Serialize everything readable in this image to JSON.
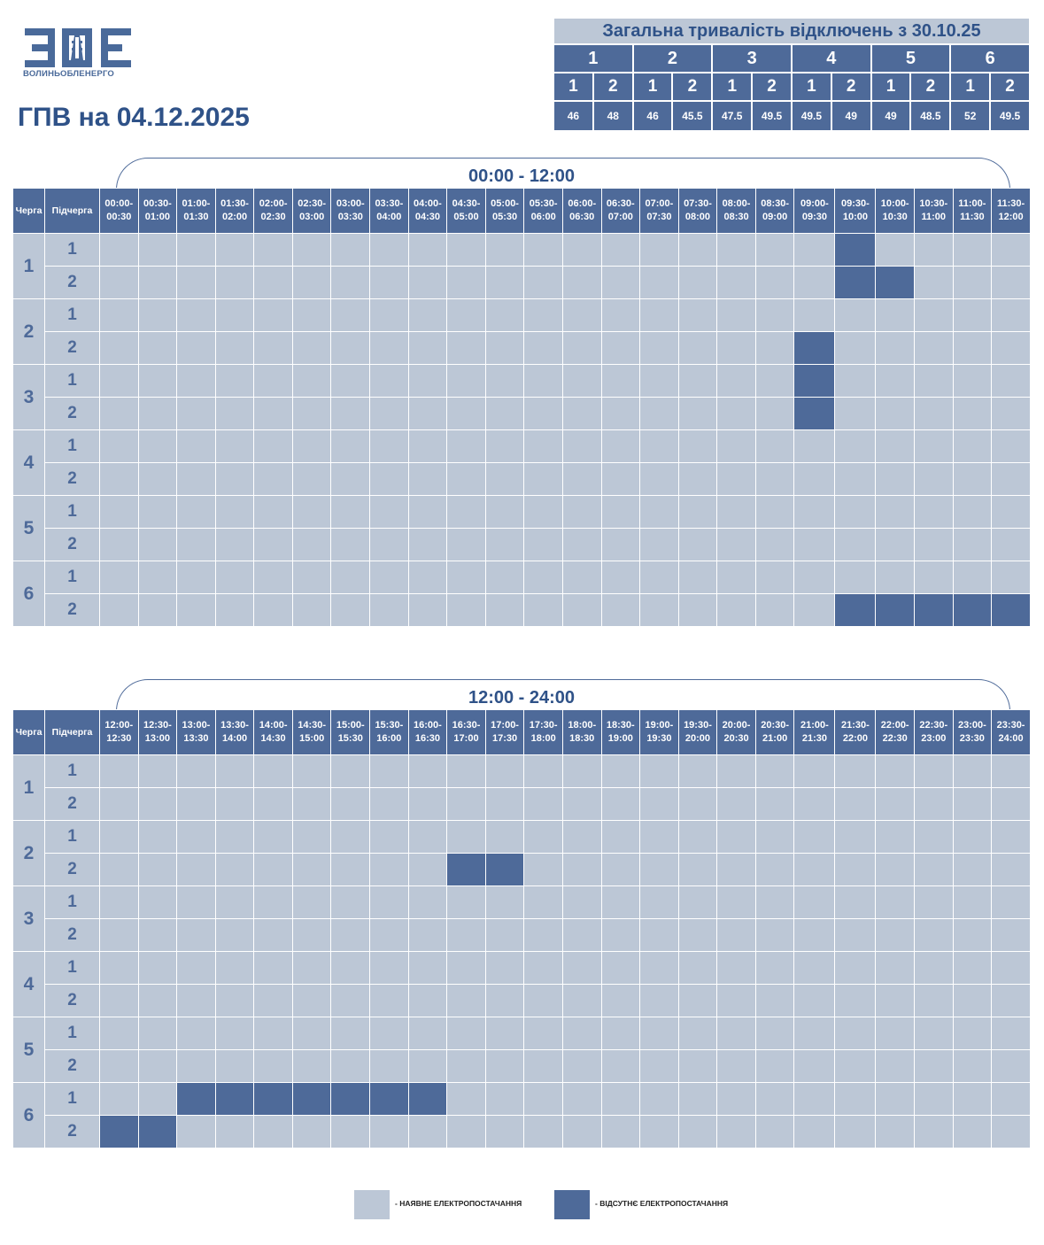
{
  "logo": {
    "text": "ВОЛИНЬОБЛЕНЕРГО"
  },
  "title": "ГПВ на 04.12.2025",
  "summary": {
    "title": "Загальна тривалість відключень з 30.10.25",
    "queues": [
      "1",
      "2",
      "3",
      "4",
      "5",
      "6"
    ],
    "subqueues": [
      "1",
      "2",
      "1",
      "2",
      "1",
      "2",
      "1",
      "2",
      "1",
      "2",
      "1",
      "2"
    ],
    "values": [
      "46",
      "48",
      "46",
      "45.5",
      "47.5",
      "49.5",
      "49.5",
      "49",
      "49",
      "48.5",
      "52",
      "49.5"
    ]
  },
  "headers": {
    "queue": "Черга",
    "subqueue": "Підчерга"
  },
  "blocks": [
    {
      "range": "00:00 - 12:00",
      "slots": [
        "00:00-\n00:30",
        "00:30-\n01:00",
        "01:00-\n01:30",
        "01:30-\n02:00",
        "02:00-\n02:30",
        "02:30-\n03:00",
        "03:00-\n03:30",
        "03:30-\n04:00",
        "04:00-\n04:30",
        "04:30-\n05:00",
        "05:00-\n05:30",
        "05:30-\n06:00",
        "06:00-\n06:30",
        "06:30-\n07:00",
        "07:00-\n07:30",
        "07:30-\n08:00",
        "08:00-\n08:30",
        "08:30-\n09:00",
        "09:00-\n09:30",
        "09:30-\n10:00",
        "10:00-\n10:30",
        "10:30-\n11:00",
        "11:00-\n11:30",
        "11:30-\n12:00"
      ],
      "outages": {
        "1-1": [
          19
        ],
        "1-2": [
          19,
          20
        ],
        "2-2": [
          18
        ],
        "3-1": [
          18
        ],
        "3-2": [
          18
        ],
        "6-2": [
          19,
          20,
          21,
          22,
          23
        ]
      }
    },
    {
      "range": "12:00 - 24:00",
      "slots": [
        "12:00-\n12:30",
        "12:30-\n13:00",
        "13:00-\n13:30",
        "13:30-\n14:00",
        "14:00-\n14:30",
        "14:30-\n15:00",
        "15:00-\n15:30",
        "15:30-\n16:00",
        "16:00-\n16:30",
        "16:30-\n17:00",
        "17:00-\n17:30",
        "17:30-\n18:00",
        "18:00-\n18:30",
        "18:30-\n19:00",
        "19:00-\n19:30",
        "19:30-\n20:00",
        "20:00-\n20:30",
        "20:30-\n21:00",
        "21:00-\n21:30",
        "21:30-\n22:00",
        "22:00-\n22:30",
        "22:30-\n23:00",
        "23:00-\n23:30",
        "23:30-\n24:00"
      ],
      "outages": {
        "2-2": [
          9,
          10
        ],
        "6-1": [
          2,
          3,
          4,
          5,
          6,
          7,
          8
        ],
        "6-2": [
          0,
          1
        ]
      }
    }
  ],
  "queues": [
    "1",
    "2",
    "3",
    "4",
    "5",
    "6"
  ],
  "subqueue_labels": [
    "1",
    "2"
  ],
  "legend": {
    "available": "- НАЯВНЕ ЕЛЕКТРОПОСТАЧАННЯ",
    "absent": "- ВІДСУТНЄ ЕЛЕКТРОПОСТАЧАННЯ"
  },
  "colors": {
    "available": "#bcc7d6",
    "absent": "#4e6a99",
    "accent": "#2f5288"
  }
}
